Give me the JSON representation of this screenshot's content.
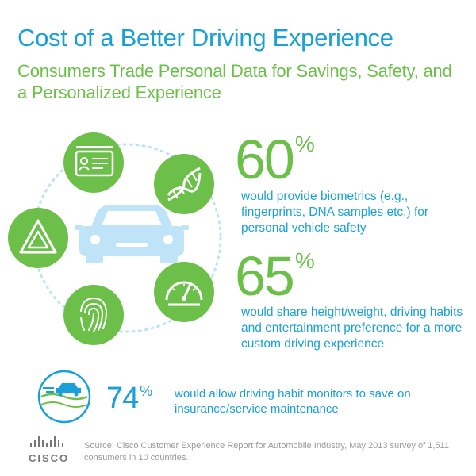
{
  "header": {
    "title": "Cost of a Better Driving Experience",
    "subtitle": "Consumers Trade Personal Data for Savings, Safety, and a Personalized Experience"
  },
  "stats": [
    {
      "value": "60",
      "unit": "%",
      "description": "would provide biometrics (e.g., fingerprints, DNA samples etc.) for personal vehicle safety"
    },
    {
      "value": "65",
      "unit": "%",
      "description": "would share height/weight, driving habits and entertainment preference for a more custom driving experience"
    },
    {
      "value": "74",
      "unit": "%",
      "description": "would allow driving habit monitors to save on insurance/service maintenance"
    }
  ],
  "icons": [
    "id-card-icon",
    "dna-icon",
    "hazard-triangle-icon",
    "fingerprint-icon",
    "speedometer-icon",
    "car-icon",
    "car-monitor-icon",
    "cisco-logo"
  ],
  "colors": {
    "blue": "#1aa0d8",
    "green": "#6cc04a",
    "light_blue": "#bfe4f7",
    "gray": "#9a9a9a"
  },
  "footer": {
    "source": "Source: Cisco Customer Experience Report for Automobile Industry, May 2013 survey of 1,511 consumers in 10 countries.",
    "logo_text": "CISCO"
  }
}
